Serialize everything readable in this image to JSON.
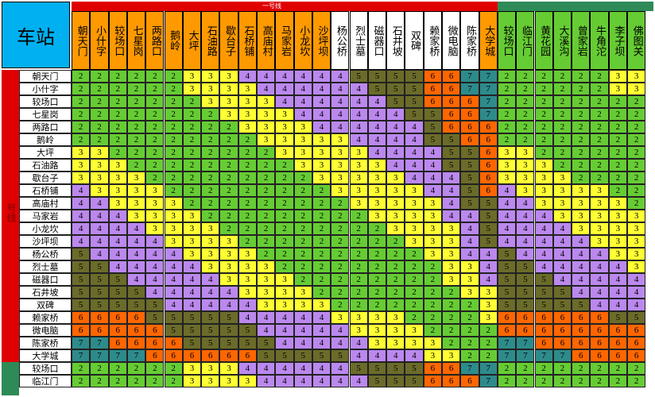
{
  "corner_title": "车站",
  "line_label_top": "一号线",
  "line_label_side": "号线",
  "colors": {
    "1": "#ff99cc",
    "2": "#66cc33",
    "3": "#ffff33",
    "4": "#bb88ee",
    "5": "#6b6b2a",
    "6": "#ff6600",
    "7": "#2e8b8b",
    "header": "#ff9900",
    "header_alt": "#ffffff",
    "header_line2": "#66cc33",
    "corner": "#00b0f0",
    "red": "#e00000",
    "green": "#2e8b57"
  },
  "columns": [
    {
      "name": "朝天门",
      "group": "line1"
    },
    {
      "name": "小什字",
      "group": "line1"
    },
    {
      "name": "较场口",
      "group": "line1"
    },
    {
      "name": "七星岗",
      "group": "line1"
    },
    {
      "name": "两路口",
      "group": "line1"
    },
    {
      "name": "鹅岭",
      "group": "line1"
    },
    {
      "name": "大坪",
      "group": "line1"
    },
    {
      "name": "石油路",
      "group": "line1"
    },
    {
      "name": "歇台子",
      "group": "line1"
    },
    {
      "name": "石桥铺",
      "group": "line1"
    },
    {
      "name": "高庙村",
      "group": "line1"
    },
    {
      "name": "马家岩",
      "group": "line1"
    },
    {
      "name": "小龙坎",
      "group": "line1"
    },
    {
      "name": "沙坪坝",
      "group": "line1"
    },
    {
      "name": "杨公桥",
      "group": "white"
    },
    {
      "name": "烈士墓",
      "group": "white"
    },
    {
      "name": "磁器口",
      "group": "white"
    },
    {
      "name": "石井坡",
      "group": "white"
    },
    {
      "name": "双碑",
      "group": "white"
    },
    {
      "name": "赖家桥",
      "group": "white"
    },
    {
      "name": "微电脑",
      "group": "white"
    },
    {
      "name": "陈家桥",
      "group": "white"
    },
    {
      "name": "大学城",
      "group": "line1"
    },
    {
      "name": "较场口",
      "group": "line2"
    },
    {
      "name": "临江门",
      "group": "line2"
    },
    {
      "name": "黄花园",
      "group": "line2"
    },
    {
      "name": "大溪沟",
      "group": "line2"
    },
    {
      "name": "曾家岩",
      "group": "line2"
    },
    {
      "name": "牛角沱",
      "group": "line2"
    },
    {
      "name": "李子坝",
      "group": "line2"
    },
    {
      "name": "佛图关",
      "group": "line2"
    }
  ],
  "rows": [
    {
      "name": "朝天门",
      "values": [
        2,
        2,
        2,
        2,
        2,
        2,
        3,
        3,
        3,
        4,
        4,
        4,
        4,
        4,
        4,
        5,
        5,
        5,
        5,
        6,
        6,
        7,
        7,
        2,
        2,
        2,
        2,
        2,
        2,
        3,
        3
      ]
    },
    {
      "name": "小什字",
      "values": [
        2,
        2,
        2,
        2,
        2,
        2,
        3,
        3,
        3,
        3,
        4,
        4,
        4,
        4,
        4,
        4,
        5,
        5,
        5,
        6,
        6,
        7,
        7,
        2,
        2,
        2,
        2,
        2,
        2,
        3,
        3
      ]
    },
    {
      "name": "较场口",
      "values": [
        2,
        2,
        2,
        2,
        2,
        2,
        2,
        3,
        3,
        3,
        3,
        4,
        4,
        4,
        4,
        4,
        4,
        5,
        5,
        6,
        6,
        6,
        7,
        2,
        2,
        2,
        2,
        2,
        2,
        2,
        2
      ]
    },
    {
      "name": "七星岗",
      "values": [
        2,
        2,
        2,
        2,
        2,
        2,
        2,
        2,
        3,
        3,
        3,
        3,
        4,
        4,
        4,
        4,
        4,
        4,
        5,
        5,
        6,
        6,
        7,
        2,
        2,
        2,
        2,
        2,
        2,
        2,
        2
      ]
    },
    {
      "name": "两路口",
      "values": [
        2,
        2,
        2,
        2,
        2,
        2,
        2,
        2,
        2,
        3,
        3,
        3,
        3,
        4,
        4,
        4,
        4,
        4,
        4,
        5,
        6,
        6,
        6,
        2,
        2,
        2,
        2,
        2,
        2,
        2,
        2
      ]
    },
    {
      "name": "鹅岭",
      "values": [
        2,
        2,
        2,
        2,
        2,
        2,
        2,
        2,
        2,
        2,
        3,
        3,
        3,
        3,
        3,
        4,
        4,
        4,
        4,
        5,
        5,
        6,
        6,
        2,
        2,
        2,
        2,
        2,
        2,
        2,
        2
      ]
    },
    {
      "name": "大坪",
      "values": [
        3,
        3,
        2,
        2,
        2,
        2,
        2,
        2,
        2,
        2,
        2,
        3,
        3,
        3,
        3,
        3,
        4,
        4,
        4,
        4,
        5,
        5,
        6,
        3,
        3,
        2,
        2,
        2,
        2,
        2,
        2
      ]
    },
    {
      "name": "石油路",
      "values": [
        3,
        3,
        3,
        2,
        2,
        2,
        2,
        2,
        2,
        2,
        2,
        2,
        3,
        3,
        3,
        3,
        3,
        4,
        4,
        4,
        5,
        5,
        6,
        3,
        3,
        3,
        2,
        2,
        2,
        2,
        2
      ]
    },
    {
      "name": "歇台子",
      "values": [
        3,
        3,
        3,
        3,
        2,
        2,
        2,
        2,
        2,
        2,
        2,
        2,
        2,
        3,
        3,
        3,
        3,
        3,
        4,
        4,
        4,
        5,
        6,
        3,
        3,
        3,
        3,
        2,
        2,
        2,
        2
      ]
    },
    {
      "name": "石桥铺",
      "values": [
        4,
        3,
        3,
        3,
        3,
        2,
        2,
        2,
        2,
        2,
        2,
        2,
        2,
        2,
        3,
        3,
        3,
        3,
        3,
        4,
        4,
        5,
        6,
        4,
        3,
        3,
        3,
        3,
        3,
        2,
        2
      ]
    },
    {
      "name": "高庙村",
      "values": [
        4,
        4,
        3,
        3,
        3,
        3,
        2,
        2,
        2,
        2,
        2,
        2,
        2,
        2,
        2,
        3,
        3,
        3,
        3,
        3,
        4,
        5,
        5,
        4,
        4,
        3,
        3,
        3,
        3,
        3,
        2
      ]
    },
    {
      "name": "马家岩",
      "values": [
        4,
        4,
        4,
        3,
        3,
        3,
        3,
        2,
        2,
        2,
        2,
        2,
        2,
        2,
        2,
        2,
        3,
        3,
        3,
        3,
        4,
        4,
        5,
        4,
        4,
        4,
        3,
        3,
        3,
        3,
        3
      ]
    },
    {
      "name": "小龙坎",
      "values": [
        4,
        4,
        4,
        4,
        3,
        3,
        3,
        3,
        2,
        2,
        2,
        2,
        2,
        2,
        2,
        2,
        2,
        3,
        3,
        3,
        3,
        4,
        5,
        4,
        4,
        4,
        4,
        3,
        3,
        3,
        3
      ]
    },
    {
      "name": "沙坪坝",
      "values": [
        4,
        4,
        4,
        4,
        4,
        3,
        3,
        3,
        3,
        2,
        2,
        2,
        2,
        2,
        2,
        2,
        2,
        2,
        3,
        3,
        3,
        4,
        5,
        4,
        4,
        4,
        4,
        4,
        3,
        3,
        3
      ]
    },
    {
      "name": "杨公桥",
      "values": [
        5,
        4,
        4,
        4,
        4,
        4,
        3,
        3,
        3,
        3,
        2,
        2,
        2,
        2,
        2,
        2,
        2,
        2,
        2,
        3,
        3,
        4,
        4,
        5,
        4,
        4,
        4,
        4,
        4,
        3,
        3
      ]
    },
    {
      "name": "烈士墓",
      "values": [
        5,
        5,
        4,
        4,
        4,
        4,
        4,
        3,
        3,
        3,
        3,
        2,
        2,
        2,
        2,
        2,
        2,
        2,
        2,
        2,
        3,
        3,
        4,
        5,
        5,
        4,
        4,
        4,
        4,
        4,
        3
      ]
    },
    {
      "name": "磁器口",
      "values": [
        5,
        5,
        5,
        4,
        4,
        4,
        4,
        4,
        3,
        3,
        3,
        3,
        2,
        2,
        2,
        2,
        2,
        2,
        2,
        2,
        3,
        3,
        4,
        5,
        5,
        5,
        4,
        4,
        4,
        4,
        4
      ]
    },
    {
      "name": "石井坡",
      "values": [
        5,
        5,
        5,
        5,
        4,
        4,
        4,
        4,
        4,
        3,
        3,
        3,
        3,
        2,
        2,
        2,
        2,
        2,
        2,
        2,
        2,
        3,
        3,
        5,
        5,
        5,
        5,
        4,
        4,
        4,
        4
      ]
    },
    {
      "name": "双碑",
      "values": [
        5,
        5,
        5,
        5,
        5,
        4,
        4,
        4,
        4,
        4,
        3,
        3,
        3,
        3,
        2,
        2,
        2,
        2,
        2,
        2,
        2,
        2,
        3,
        5,
        5,
        5,
        5,
        5,
        4,
        4,
        4
      ]
    },
    {
      "name": "赖家桥",
      "values": [
        6,
        6,
        6,
        6,
        5,
        5,
        5,
        5,
        5,
        4,
        4,
        4,
        4,
        4,
        3,
        3,
        3,
        3,
        2,
        2,
        2,
        2,
        3,
        6,
        6,
        6,
        6,
        6,
        6,
        5,
        5
      ]
    },
    {
      "name": "微电脑",
      "values": [
        6,
        6,
        6,
        6,
        6,
        5,
        5,
        5,
        5,
        5,
        4,
        4,
        4,
        4,
        4,
        3,
        3,
        3,
        3,
        2,
        2,
        2,
        2,
        6,
        6,
        6,
        6,
        6,
        6,
        6,
        6
      ]
    },
    {
      "name": "陈家桥",
      "values": [
        7,
        7,
        6,
        6,
        6,
        6,
        5,
        5,
        5,
        5,
        5,
        4,
        4,
        4,
        4,
        4,
        3,
        3,
        3,
        3,
        2,
        2,
        2,
        7,
        7,
        6,
        6,
        6,
        6,
        6,
        6
      ]
    },
    {
      "name": "大学城",
      "values": [
        7,
        7,
        7,
        7,
        6,
        6,
        6,
        6,
        6,
        6,
        5,
        5,
        5,
        5,
        5,
        4,
        4,
        4,
        4,
        3,
        3,
        2,
        2,
        7,
        7,
        7,
        7,
        6,
        6,
        6,
        6
      ]
    },
    {
      "name": "较场口",
      "values": [
        2,
        2,
        2,
        2,
        2,
        2,
        3,
        3,
        3,
        4,
        4,
        4,
        4,
        4,
        4,
        5,
        5,
        5,
        5,
        6,
        6,
        7,
        7,
        2,
        2,
        2,
        2,
        2,
        2,
        2,
        2
      ]
    },
    {
      "name": "临江门",
      "values": [
        2,
        2,
        2,
        2,
        2,
        2,
        3,
        3,
        3,
        3,
        4,
        4,
        4,
        4,
        4,
        4,
        5,
        5,
        5,
        6,
        6,
        6,
        7,
        2,
        2,
        2,
        2,
        2,
        2,
        2,
        2
      ]
    }
  ]
}
